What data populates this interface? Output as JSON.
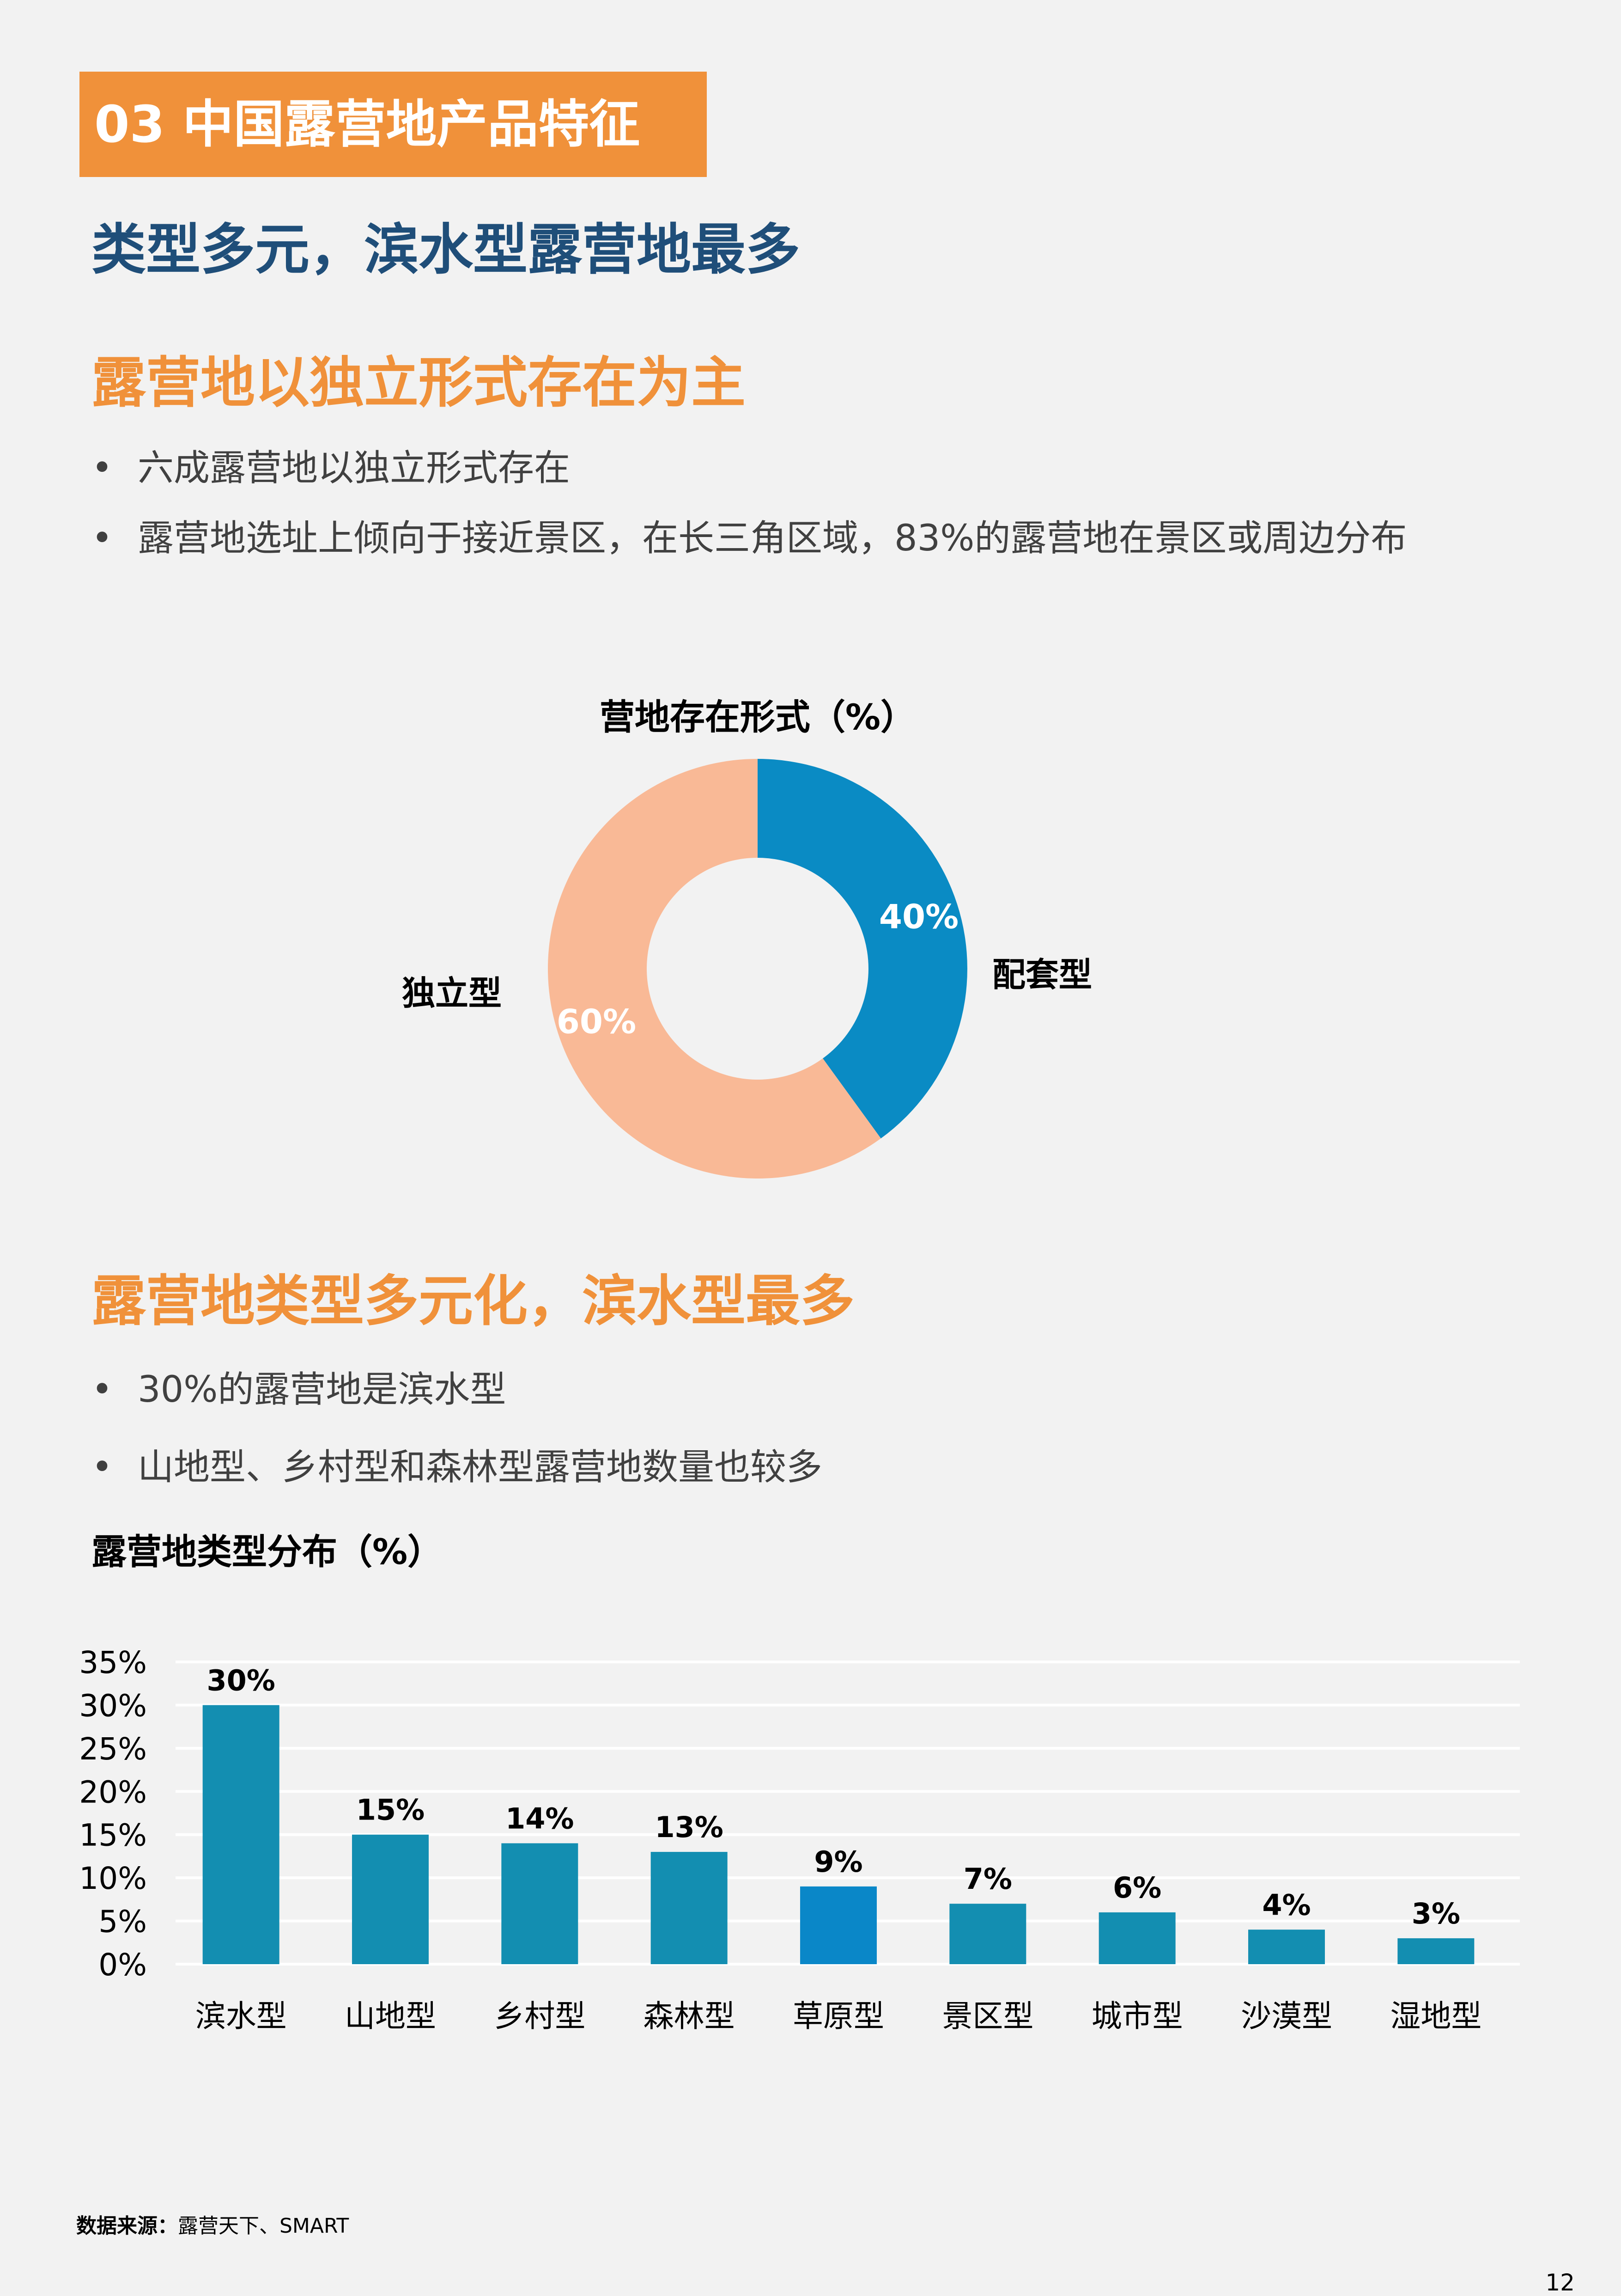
{
  "section": {
    "tag": "03 中国露营地产品特征"
  },
  "headline": "类型多元，滨水型露营地最多",
  "part1": {
    "heading": "露营地以独立形式存在为主",
    "bullets": [
      "六成露营地以独立形式存在",
      "露营地选址上倾向于接近景区，在长三角区域，83%的露营地在景区或周边分布"
    ]
  },
  "part2": {
    "heading": "露营地类型多元化，滨水型最多",
    "bullets": [
      "30%的露营地是滨水型",
      "山地型、乡村型和森林型露营地数量也较多"
    ]
  },
  "bullet_symbol": "•",
  "chart_data": [
    {
      "type": "pie",
      "title": "营地存在形式（%）",
      "donut": true,
      "slices": [
        {
          "label": "配套型",
          "value": 40,
          "value_label": "40%",
          "color": "#0a8bc4"
        },
        {
          "label": "独立型",
          "value": 60,
          "value_label": "60%",
          "color": "#f9b996"
        }
      ]
    },
    {
      "type": "bar",
      "title": "露营地类型分布（%）",
      "categories": [
        "滨水型",
        "山地型",
        "乡村型",
        "森林型",
        "草原型",
        "景区型",
        "城市型",
        "沙漠型",
        "湿地型"
      ],
      "values": [
        30,
        15,
        14,
        13,
        9,
        7,
        6,
        4,
        3
      ],
      "value_labels": [
        "30%",
        "15%",
        "14%",
        "13%",
        "9%",
        "7%",
        "6%",
        "4%",
        "3%"
      ],
      "ylim": [
        0,
        35
      ],
      "yticks": [
        "0%",
        "5%",
        "10%",
        "15%",
        "20%",
        "25%",
        "30%",
        "35%"
      ],
      "grid": true,
      "color": "#138eb1",
      "highlight_color": "#0a87c8"
    }
  ],
  "footer": {
    "source_label": "数据来源：",
    "source_text": "露营天下、SMART",
    "page_number": "12"
  }
}
